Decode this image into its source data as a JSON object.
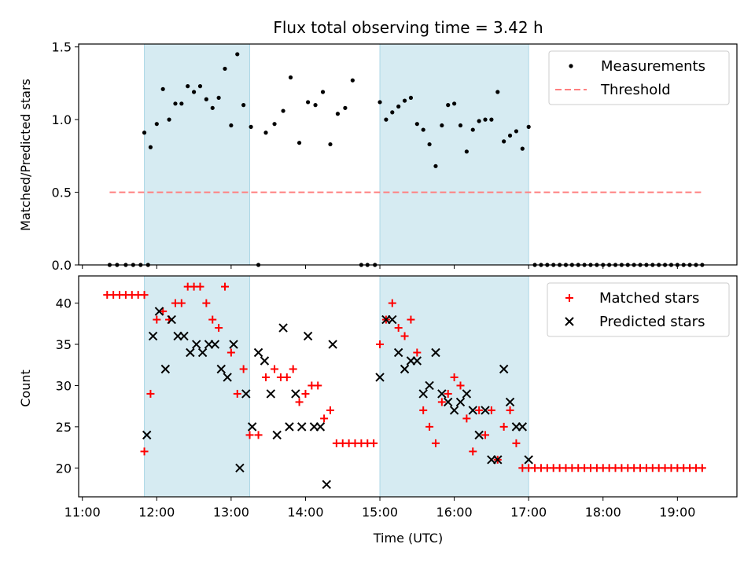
{
  "chart_data": [
    {
      "type": "scatter",
      "title": "Flux total observing time = 3.42 h",
      "xlabel": "",
      "ylabel": "Matched/Predicted stars",
      "ylim": [
        0,
        1.52
      ],
      "yticks": [
        "0.0",
        "0.5",
        "1.0",
        "1.5"
      ],
      "ytick_values": [
        0,
        0.5,
        1.0,
        1.5
      ],
      "xlim_hours": [
        10.95,
        19.8
      ],
      "legend": {
        "position": "top-right",
        "entries": [
          "Measurements",
          "Threshold"
        ]
      },
      "shaded_intervals": [
        [
          "11:50",
          "13:15"
        ],
        [
          "15:00",
          "17:00"
        ]
      ],
      "threshold": {
        "name": "Threshold",
        "value": 0.5,
        "x_start": "11:22",
        "x_end": "19:20",
        "color": "#ff7f7f"
      },
      "series": [
        {
          "name": "Measurements",
          "color": "#000000",
          "x": [
            "11:22",
            "11:28",
            "11:35",
            "11:41",
            "11:47",
            "11:53",
            "11:50",
            "11:55",
            "12:00",
            "12:05",
            "12:10",
            "12:15",
            "12:20",
            "12:25",
            "12:30",
            "12:35",
            "12:40",
            "12:45",
            "12:50",
            "12:55",
            "13:00",
            "13:05",
            "13:10",
            "13:16",
            "13:22",
            "13:28",
            "13:35",
            "13:42",
            "13:48",
            "13:55",
            "14:02",
            "14:08",
            "14:14",
            "14:20",
            "14:26",
            "14:32",
            "14:38",
            "14:45",
            "14:50",
            "14:56",
            "15:00",
            "15:05",
            "15:10",
            "15:15",
            "15:20",
            "15:25",
            "15:30",
            "15:35",
            "15:40",
            "15:45",
            "15:50",
            "15:55",
            "16:00",
            "16:05",
            "16:10",
            "16:15",
            "16:20",
            "16:25",
            "16:30",
            "16:35",
            "16:40",
            "16:45",
            "16:50",
            "16:55",
            "17:00",
            "17:05",
            "17:10",
            "17:15",
            "17:20",
            "17:25",
            "17:30",
            "17:35",
            "17:40",
            "17:45",
            "17:50",
            "17:55",
            "18:00",
            "18:05",
            "18:10",
            "18:15",
            "18:20",
            "18:25",
            "18:30",
            "18:35",
            "18:40",
            "18:45",
            "18:50",
            "18:55",
            "19:00",
            "19:05",
            "19:10",
            "19:15",
            "19:20"
          ],
          "y": [
            0,
            0,
            0,
            0,
            0,
            0,
            0.91,
            0.81,
            0.97,
            1.21,
            1.0,
            1.11,
            1.11,
            1.23,
            1.19,
            1.23,
            1.14,
            1.08,
            1.15,
            1.35,
            0.96,
            1.45,
            1.1,
            0.95,
            0,
            0.91,
            0.97,
            1.06,
            1.29,
            0.84,
            1.12,
            1.1,
            1.19,
            0.83,
            1.04,
            1.08,
            1.27,
            0,
            0,
            0,
            1.12,
            1.0,
            1.05,
            1.09,
            1.13,
            1.15,
            0.97,
            0.93,
            0.83,
            0.68,
            0.96,
            1.1,
            1.11,
            0.96,
            0.78,
            0.93,
            0.99,
            1.0,
            1.0,
            1.19,
            0.85,
            0.89,
            0.92,
            0.8,
            0.95,
            0,
            0,
            0,
            0,
            0,
            0,
            0,
            0,
            0,
            0,
            0,
            0,
            0,
            0,
            0,
            0,
            0,
            0,
            0,
            0,
            0,
            0,
            0,
            0,
            0,
            0,
            0,
            0
          ]
        }
      ]
    },
    {
      "type": "scatter",
      "title": "",
      "xlabel": "Time (UTC)",
      "ylabel": "Count",
      "ylim": [
        16.5,
        43.3
      ],
      "yticks": [
        "20",
        "25",
        "30",
        "35",
        "40"
      ],
      "ytick_values": [
        20,
        25,
        30,
        35,
        40
      ],
      "xticks": [
        "11:00",
        "12:00",
        "13:00",
        "14:00",
        "15:00",
        "16:00",
        "17:00",
        "18:00",
        "19:00"
      ],
      "xtick_hours": [
        11,
        12,
        13,
        14,
        15,
        16,
        17,
        18,
        19
      ],
      "xlim_hours": [
        10.95,
        19.8
      ],
      "legend": {
        "position": "top-right",
        "entries": [
          "Matched stars",
          "Predicted stars"
        ]
      },
      "shaded_intervals": [
        [
          "11:50",
          "13:15"
        ],
        [
          "15:00",
          "17:00"
        ]
      ],
      "series": [
        {
          "name": "Matched stars",
          "color": "#ff0000",
          "marker": "plus",
          "x": [
            "11:20",
            "11:25",
            "11:30",
            "11:35",
            "11:40",
            "11:45",
            "11:50",
            "11:50",
            "11:55",
            "12:00",
            "12:05",
            "12:10",
            "12:15",
            "12:20",
            "12:25",
            "12:30",
            "12:35",
            "12:40",
            "12:45",
            "12:50",
            "12:55",
            "13:00",
            "13:05",
            "13:10",
            "13:15",
            "13:22",
            "13:28",
            "13:35",
            "13:40",
            "13:45",
            "13:50",
            "13:55",
            "14:00",
            "14:05",
            "14:10",
            "14:15",
            "14:20",
            "14:25",
            "14:30",
            "14:35",
            "14:40",
            "14:45",
            "14:50",
            "14:55",
            "15:00",
            "15:05",
            "15:10",
            "15:15",
            "15:20",
            "15:25",
            "15:30",
            "15:35",
            "15:40",
            "15:45",
            "15:50",
            "15:55",
            "16:00",
            "16:05",
            "16:10",
            "16:15",
            "16:20",
            "16:25",
            "16:30",
            "16:35",
            "16:40",
            "16:45",
            "16:50",
            "16:55",
            "17:00",
            "17:05",
            "17:10",
            "17:15",
            "17:20",
            "17:25",
            "17:30",
            "17:35",
            "17:40",
            "17:45",
            "17:50",
            "17:55",
            "18:00",
            "18:05",
            "18:10",
            "18:15",
            "18:20",
            "18:25",
            "18:30",
            "18:35",
            "18:40",
            "18:45",
            "18:50",
            "18:55",
            "19:00",
            "19:05",
            "19:10",
            "19:15",
            "19:20"
          ],
          "y": [
            41,
            41,
            41,
            41,
            41,
            41,
            41,
            22,
            29,
            38,
            39,
            38,
            40,
            40,
            42,
            42,
            42,
            40,
            38,
            37,
            42,
            34,
            29,
            32,
            24,
            24,
            31,
            32,
            31,
            31,
            32,
            28,
            29,
            30,
            30,
            26,
            27,
            23,
            23,
            23,
            23,
            23,
            23,
            23,
            35,
            38,
            40,
            37,
            36,
            38,
            34,
            27,
            25,
            23,
            28,
            29,
            31,
            30,
            26,
            22,
            27,
            24,
            27,
            21,
            25,
            27,
            23,
            20,
            20,
            20,
            20,
            20,
            20,
            20,
            20,
            20,
            20,
            20,
            20,
            20,
            20,
            20,
            20,
            20,
            20,
            20,
            20,
            20,
            20,
            20,
            20,
            20,
            20,
            20,
            20,
            20,
            20
          ]
        },
        {
          "name": "Predicted stars",
          "color": "#000000",
          "marker": "x",
          "x": [
            "11:52",
            "11:57",
            "12:02",
            "12:07",
            "12:12",
            "12:17",
            "12:22",
            "12:27",
            "12:32",
            "12:37",
            "12:42",
            "12:47",
            "12:52",
            "12:57",
            "13:02",
            "13:07",
            "13:12",
            "13:17",
            "13:22",
            "13:27",
            "13:32",
            "13:37",
            "13:42",
            "13:47",
            "13:52",
            "13:57",
            "14:02",
            "14:07",
            "14:12",
            "14:17",
            "14:22",
            "15:00",
            "15:05",
            "15:10",
            "15:15",
            "15:20",
            "15:25",
            "15:30",
            "15:35",
            "15:40",
            "15:45",
            "15:50",
            "15:55",
            "16:00",
            "16:05",
            "16:10",
            "16:15",
            "16:20",
            "16:25",
            "16:30",
            "16:35",
            "16:40",
            "16:45",
            "16:50",
            "16:55",
            "17:00"
          ],
          "y": [
            24,
            36,
            39,
            32,
            38,
            36,
            36,
            34,
            35,
            34,
            35,
            35,
            32,
            31,
            35,
            20,
            29,
            25,
            34,
            33,
            29,
            24,
            37,
            25,
            29,
            25,
            36,
            25,
            25,
            18,
            35,
            31,
            38,
            38,
            34,
            32,
            33,
            33,
            29,
            30,
            34,
            29,
            28,
            27,
            28,
            29,
            27,
            24,
            27,
            21,
            21,
            32,
            28,
            25,
            25,
            21
          ]
        }
      ]
    }
  ]
}
